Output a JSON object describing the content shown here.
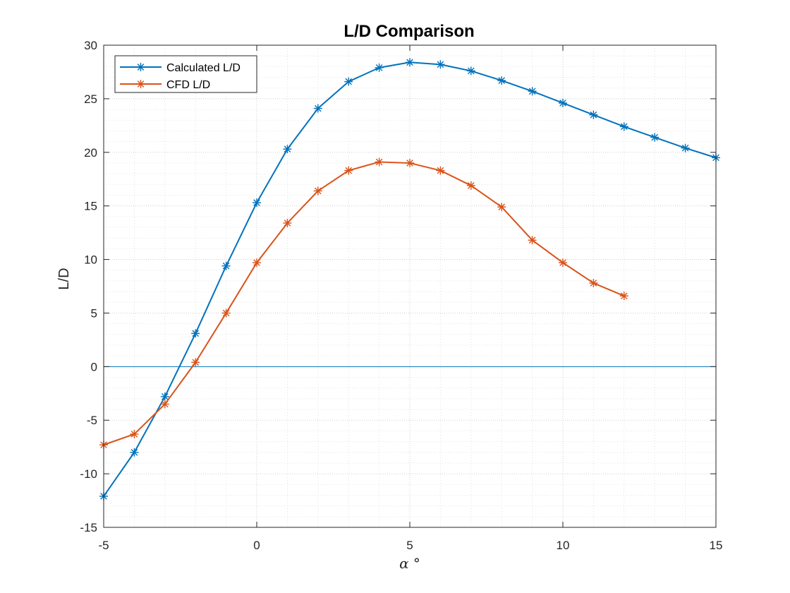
{
  "chart_data": {
    "type": "line",
    "title": "L/D Comparison",
    "xlabel": "α °",
    "ylabel": "L/D",
    "xlim": [
      -5,
      15
    ],
    "ylim": [
      -15,
      30
    ],
    "xticks": [
      "-5",
      "0",
      "5",
      "10",
      "15"
    ],
    "yticks": [
      "-15",
      "-10",
      "-5",
      "0",
      "5",
      "10",
      "15",
      "20",
      "25",
      "30"
    ],
    "grid": "major and minor (dotted)",
    "legend_position": "top-left",
    "marker": "asterisk",
    "reference_line": {
      "y": 0,
      "color": "#0072BD"
    },
    "series": [
      {
        "name": "Calculated L/D",
        "color": "#0072BD",
        "x": [
          -5,
          -4,
          -3,
          -2,
          -1,
          0,
          1,
          2,
          3,
          4,
          5,
          6,
          7,
          8,
          9,
          10,
          11,
          12,
          13,
          14,
          15
        ],
        "values": [
          -12.1,
          -8.0,
          -2.8,
          3.1,
          9.4,
          15.3,
          20.3,
          24.1,
          26.6,
          27.9,
          28.4,
          28.2,
          27.6,
          26.7,
          25.7,
          24.6,
          23.5,
          22.4,
          21.4,
          20.4,
          19.5
        ]
      },
      {
        "name": "CFD L/D",
        "color": "#D95319",
        "x": [
          -5,
          -4,
          -3,
          -2,
          -1,
          0,
          1,
          2,
          3,
          4,
          5,
          6,
          7,
          8,
          9,
          10,
          11,
          12
        ],
        "values": [
          -7.3,
          -6.3,
          -3.5,
          0.4,
          5.0,
          9.7,
          13.4,
          16.4,
          18.3,
          19.1,
          19.0,
          18.3,
          16.9,
          14.9,
          11.8,
          9.7,
          7.8,
          6.6
        ]
      }
    ]
  }
}
